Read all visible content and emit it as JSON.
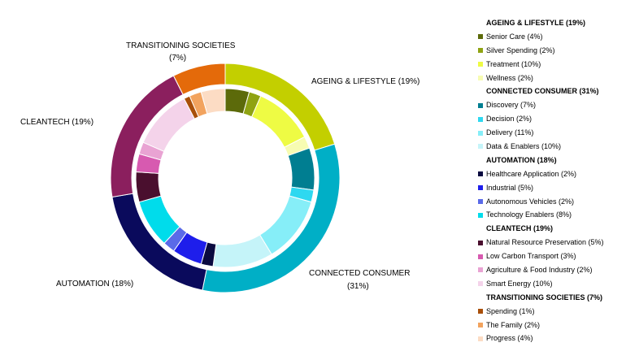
{
  "chart_data": {
    "type": "pie",
    "variant": "nested-donut",
    "title": "",
    "groups": [
      {
        "name": "AGEING & LIFESTYLE",
        "value": 19,
        "outer_label": "AGEING & LIFESTYLE  (19%)",
        "legend_title": "AGEING & LIFESTYLE  (19%)",
        "color": "#C3CF00",
        "items": [
          {
            "name": "Senior Care",
            "value": 4,
            "label": "Senior Care (4%)",
            "color": "#5C6A0A"
          },
          {
            "name": "Silver Spending",
            "value": 2,
            "label": "Silver Spending (2%)",
            "color": "#8FA312"
          },
          {
            "name": "Treatment",
            "value": 10,
            "label": "Treatment (10%)",
            "color": "#EEFB44"
          },
          {
            "name": "Wellness",
            "value": 2,
            "label": "Wellness (2%)",
            "color": "#F7FCB2"
          }
        ]
      },
      {
        "name": "CONNECTED CONSUMER",
        "value": 31,
        "outer_label": "CONNECTED CONSUMER",
        "outer_label_pct": "(31%)",
        "legend_title": "CONNECTED CONSUMER  (31%)",
        "color": "#00AFC6",
        "items": [
          {
            "name": "Discovery",
            "value": 7,
            "label": "Discovery (7%)",
            "color": "#007E91"
          },
          {
            "name": "Decision",
            "value": 2,
            "label": "Decision (2%)",
            "color": "#2ED8F0"
          },
          {
            "name": "Delivery",
            "value": 11,
            "label": "Delivery (11%)",
            "color": "#86EEF8"
          },
          {
            "name": "Data & Enablers",
            "value": 10,
            "label": "Data & Enablers (10%)",
            "color": "#C5F4F9"
          }
        ]
      },
      {
        "name": "AUTOMATION",
        "value": 18,
        "outer_label": "AUTOMATION  (18%)",
        "legend_title": "AUTOMATION  (18%)",
        "color": "#0A0A5C",
        "items": [
          {
            "name": "Healthcare Application",
            "value": 2,
            "label": "Healthcare Application (2%)",
            "color": "#0A0A40"
          },
          {
            "name": "Industrial",
            "value": 5,
            "label": "Industrial (5%)",
            "color": "#1E1EEB"
          },
          {
            "name": "Autonomous Vehicles",
            "value": 2,
            "label": "Autonomous Vehicles (2%)",
            "color": "#5A6AE8"
          },
          {
            "name": "Technology Enablers",
            "value": 8,
            "label": "Technology Enablers (8%)",
            "color": "#00DCEB"
          }
        ]
      },
      {
        "name": "CLEANTECH",
        "value": 19,
        "outer_label": "CLEANTECH  (19%)",
        "legend_title": "CLEANTECH  (19%)",
        "color": "#8B1F5E",
        "items": [
          {
            "name": "Natural Resource Preservation",
            "value": 5,
            "label": "Natural Resource Preservation (5%)",
            "color": "#4A0F2E"
          },
          {
            "name": "Low Carbon Transport",
            "value": 3,
            "label": "Low Carbon Transport (3%)",
            "color": "#D75AB0"
          },
          {
            "name": "Agriculture & Food Industry",
            "value": 2,
            "label": "Agriculture & Food Industry (2%)",
            "color": "#E9A3D3"
          },
          {
            "name": "Smart Energy",
            "value": 10,
            "label": "Smart Energy (10%)",
            "color": "#F4D3EA"
          }
        ]
      },
      {
        "name": "TRANSITIONING SOCIETIES",
        "value": 7,
        "outer_label": "TRANSITIONING SOCIETIES",
        "outer_label_pct": "(7%)",
        "legend_title": "TRANSITIONING SOCIETIES  (7%)",
        "color": "#E46A0A",
        "items": [
          {
            "name": "Spending",
            "value": 1,
            "label": "Spending (1%)",
            "color": "#A94F0A"
          },
          {
            "name": "The Family",
            "value": 2,
            "label": "The Family (2%)",
            "color": "#F2A35E"
          },
          {
            "name": "Progress",
            "value": 4,
            "label": "Progress (4%)",
            "color": "#FCDCC4"
          }
        ]
      }
    ],
    "legend_position": "right"
  }
}
